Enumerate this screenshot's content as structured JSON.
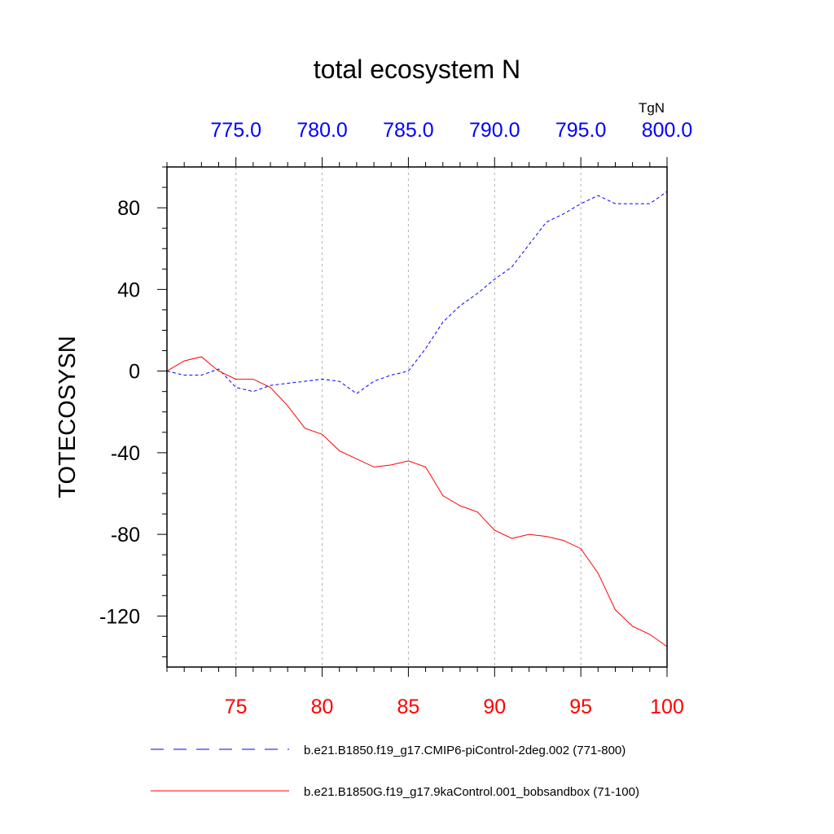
{
  "chart_data": {
    "type": "line",
    "title": "total ecosystem N",
    "units": "TgN",
    "ylabel": "TOTECOSYSN",
    "ylim": [
      -145,
      100
    ],
    "y_ticks": [
      80,
      40,
      0,
      -40,
      -80,
      -120
    ],
    "y_tick_labels": [
      "80",
      "40",
      "0",
      "-40",
      "-80",
      "-120"
    ],
    "x_bottom": {
      "range": [
        71,
        100
      ],
      "ticks": [
        75,
        80,
        85,
        90,
        95,
        100
      ],
      "tick_labels": [
        "75",
        "80",
        "85",
        "90",
        "95",
        "100"
      ],
      "color": "#ff0000"
    },
    "x_top": {
      "range": [
        771,
        800
      ],
      "ticks": [
        775,
        780,
        785,
        790,
        795,
        800
      ],
      "tick_labels": [
        "775.0",
        "780.0",
        "785.0",
        "790.0",
        "795.0",
        "800.0"
      ],
      "color": "#0000ff"
    },
    "grid": "vertical dashed at major ticks",
    "legend_position": "bottom",
    "series": [
      {
        "name": "b.e21.B1850.f19_g17.CMIP6-piControl-2deg.002 (771-800)",
        "axis": "top",
        "color": "#0000ff",
        "dash": "dashed",
        "x": [
          771,
          772,
          773,
          774,
          775,
          776,
          777,
          778,
          779,
          780,
          781,
          782,
          783,
          784,
          785,
          786,
          787,
          788,
          789,
          790,
          791,
          792,
          793,
          794,
          795,
          796,
          797,
          798,
          799,
          800
        ],
        "values": [
          0,
          -2,
          -2,
          1,
          -8,
          -10,
          -7,
          -6,
          -5,
          -4,
          -5,
          -11,
          -5,
          -2,
          0,
          11,
          24,
          32,
          38,
          45,
          51,
          62,
          73,
          77,
          82,
          86,
          82,
          82,
          82,
          88
        ]
      },
      {
        "name": "b.e21.B1850G.f19_g17.9kaControl.001_bobsandbox (71-100)",
        "axis": "bottom",
        "color": "#ff0000",
        "dash": "solid",
        "x": [
          71,
          72,
          73,
          74,
          75,
          76,
          77,
          78,
          79,
          80,
          81,
          82,
          83,
          84,
          85,
          86,
          87,
          88,
          89,
          90,
          91,
          92,
          93,
          94,
          95,
          96,
          97,
          98,
          99,
          100
        ],
        "values": [
          0,
          5,
          7,
          0,
          -4,
          -4,
          -8,
          -17,
          -28,
          -31,
          -39,
          -43,
          -47,
          -46,
          -44,
          -47,
          -61,
          -66,
          -69,
          -78,
          -82,
          -80,
          -81,
          -83,
          -87,
          -99,
          -117,
          -125,
          -129,
          -135
        ]
      }
    ]
  }
}
